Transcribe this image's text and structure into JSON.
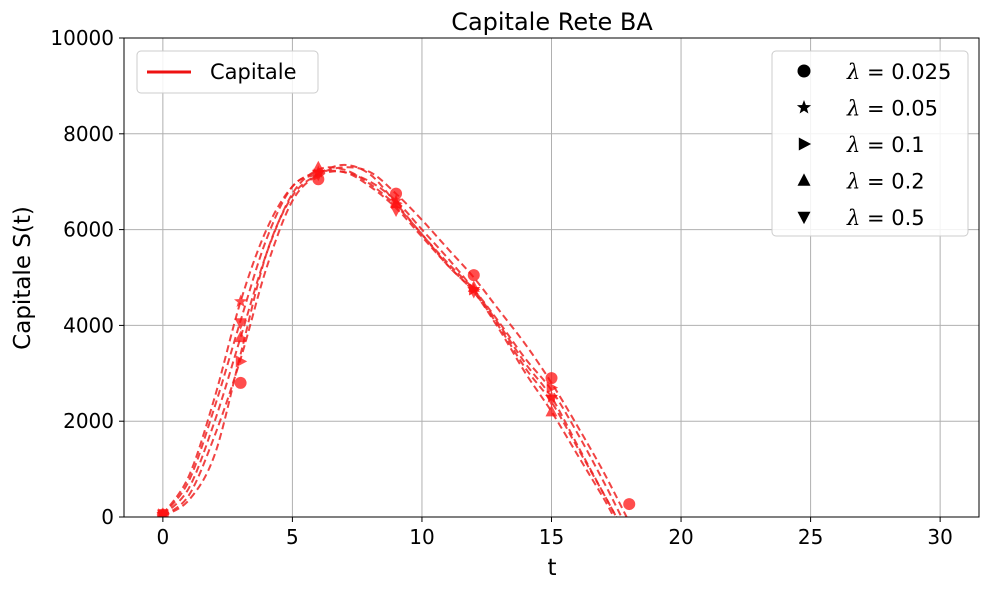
{
  "chart_data": {
    "type": "line",
    "title": "Capitale Rete BA",
    "xlabel": "t",
    "ylabel": "Capitale S(t)",
    "xlim": [
      -1.5,
      31.5
    ],
    "ylim": [
      0,
      10000
    ],
    "x_ticks": [
      0,
      5,
      10,
      15,
      20,
      25,
      30
    ],
    "y_ticks": [
      0,
      2000,
      4000,
      6000,
      8000,
      10000
    ],
    "grid": true,
    "line_style": "dashed",
    "line_color": "#ee2222",
    "legend_primary": {
      "position": "top-left",
      "label": "Capitale",
      "color": "#ee1111"
    },
    "legend_markers": {
      "position": "top-right",
      "entries": [
        {
          "marker": "circle",
          "symbol": "λ",
          "text": " = 0.025"
        },
        {
          "marker": "star",
          "symbol": "λ",
          "text": " = 0.05"
        },
        {
          "marker": "triangle-right",
          "symbol": "λ",
          "text": " = 0.1"
        },
        {
          "marker": "triangle-up",
          "symbol": "λ",
          "text": " = 0.2"
        },
        {
          "marker": "triangle-down",
          "symbol": "λ",
          "text": " = 0.5"
        }
      ]
    },
    "series": [
      {
        "lambda": 0.025,
        "marker": "circle",
        "markers": [
          [
            0,
            50
          ],
          [
            3,
            2800
          ],
          [
            6,
            7050
          ],
          [
            9,
            6750
          ],
          [
            12,
            5050
          ],
          [
            15,
            2900
          ],
          [
            18,
            270
          ]
        ],
        "curve": [
          [
            0,
            20
          ],
          [
            1,
            350
          ],
          [
            2,
            1300
          ],
          [
            3,
            3400
          ],
          [
            4,
            5500
          ],
          [
            5,
            6700
          ],
          [
            6,
            7150
          ],
          [
            7,
            7300
          ],
          [
            8,
            7200
          ],
          [
            9,
            6750
          ],
          [
            10,
            6200
          ],
          [
            11,
            5600
          ],
          [
            12,
            5000
          ],
          [
            13,
            4300
          ],
          [
            14,
            3600
          ],
          [
            15,
            2800
          ],
          [
            16,
            1900
          ],
          [
            17,
            950
          ],
          [
            17.9,
            0
          ]
        ]
      },
      {
        "lambda": 0.05,
        "marker": "star",
        "markers": [
          [
            0,
            60
          ],
          [
            3,
            4500
          ],
          [
            6,
            7200
          ],
          [
            9,
            6600
          ],
          [
            12,
            4750
          ],
          [
            15,
            2500
          ]
        ],
        "curve": [
          [
            0,
            60
          ],
          [
            1,
            850
          ],
          [
            2,
            2500
          ],
          [
            3,
            4500
          ],
          [
            4,
            6000
          ],
          [
            5,
            6900
          ],
          [
            6,
            7200
          ],
          [
            7,
            7200
          ],
          [
            8,
            7000
          ],
          [
            9,
            6600
          ],
          [
            10,
            6000
          ],
          [
            11,
            5400
          ],
          [
            12,
            4750
          ],
          [
            13,
            4000
          ],
          [
            14,
            3200
          ],
          [
            15,
            2500
          ],
          [
            16,
            1500
          ],
          [
            17,
            500
          ],
          [
            17.5,
            0
          ]
        ]
      },
      {
        "lambda": 0.1,
        "marker": "triangle-right",
        "markers": [
          [
            0,
            55
          ],
          [
            3,
            3250
          ],
          [
            6,
            7150
          ],
          [
            9,
            6550
          ],
          [
            12,
            4750
          ],
          [
            15,
            2700
          ]
        ],
        "curve": [
          [
            0,
            20
          ],
          [
            1,
            450
          ],
          [
            2,
            1700
          ],
          [
            3,
            3300
          ],
          [
            4,
            5200
          ],
          [
            5,
            6600
          ],
          [
            6,
            7150
          ],
          [
            7,
            7350
          ],
          [
            8,
            7150
          ],
          [
            9,
            6550
          ],
          [
            10,
            5900
          ],
          [
            11,
            5300
          ],
          [
            12,
            4750
          ],
          [
            13,
            4050
          ],
          [
            14,
            3300
          ],
          [
            15,
            2650
          ],
          [
            16,
            1750
          ],
          [
            17,
            750
          ],
          [
            17.7,
            0
          ]
        ]
      },
      {
        "lambda": 0.2,
        "marker": "triangle-up",
        "markers": [
          [
            0,
            55
          ],
          [
            3,
            3750
          ],
          [
            6,
            7300
          ],
          [
            9,
            6550
          ],
          [
            12,
            4800
          ],
          [
            15,
            2200
          ]
        ],
        "curve": [
          [
            0,
            40
          ],
          [
            1,
            600
          ],
          [
            2,
            2000
          ],
          [
            3,
            3750
          ],
          [
            4,
            5500
          ],
          [
            5,
            6750
          ],
          [
            6,
            7250
          ],
          [
            7,
            7250
          ],
          [
            8,
            6950
          ],
          [
            9,
            6500
          ],
          [
            10,
            5900
          ],
          [
            11,
            5250
          ],
          [
            12,
            4700
          ],
          [
            13,
            3900
          ],
          [
            14,
            3000
          ],
          [
            15,
            2200
          ],
          [
            16,
            1300
          ],
          [
            17,
            400
          ],
          [
            17.4,
            0
          ]
        ]
      },
      {
        "lambda": 0.5,
        "marker": "triangle-down",
        "markers": [
          [
            0,
            55
          ],
          [
            3,
            4050
          ],
          [
            6,
            7150
          ],
          [
            9,
            6400
          ],
          [
            12,
            4700
          ],
          [
            15,
            2450
          ]
        ],
        "curve": [
          [
            0,
            50
          ],
          [
            1,
            750
          ],
          [
            2,
            2300
          ],
          [
            3,
            4100
          ],
          [
            4,
            5800
          ],
          [
            5,
            6900
          ],
          [
            6,
            7150
          ],
          [
            7,
            7200
          ],
          [
            8,
            6900
          ],
          [
            9,
            6450
          ],
          [
            10,
            5850
          ],
          [
            11,
            5250
          ],
          [
            12,
            4700
          ],
          [
            13,
            3950
          ],
          [
            14,
            3100
          ],
          [
            15,
            2400
          ],
          [
            16,
            1450
          ],
          [
            17,
            500
          ],
          [
            17.5,
            0
          ]
        ]
      }
    ]
  }
}
